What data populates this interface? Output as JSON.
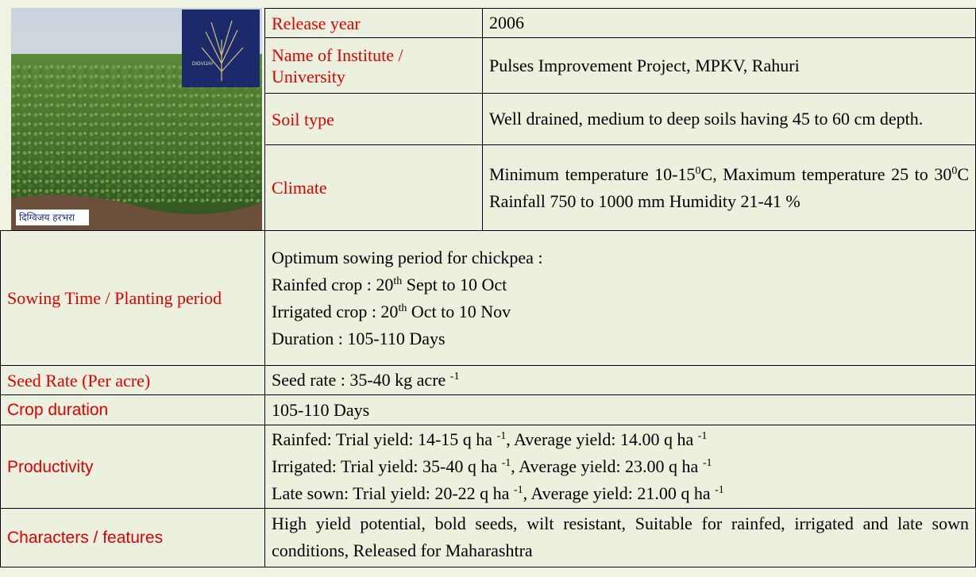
{
  "image": {
    "inset_label": "DIGVIJAY",
    "caption": "दिग्विजय हरभरा"
  },
  "top_rows": [
    {
      "label": "Release year",
      "value": [
        [
          "2006"
        ]
      ]
    },
    {
      "label": "Name of Institute / University",
      "value": [
        [
          "Pulses Improvement Project, MPKV, Rahuri"
        ]
      ]
    },
    {
      "label": "Soil type",
      "value": [
        [
          "Well drained, medium to deep soils having 45 to 60 cm depth."
        ]
      ],
      "wrap": true
    },
    {
      "label": "Climate",
      "value": [
        [
          "Minimum temperature  10-15",
          {
            "sup": "0"
          },
          "C, Maximum temperature  25 to 30",
          {
            "sup": "0"
          },
          "C Rainfall  750 to 1000 mm Humidity 21-41 %"
        ]
      ],
      "wrap": true
    }
  ],
  "bottom_rows": [
    {
      "label": "Sowing Time  / Planting  period",
      "value": [
        [
          "Optimum sowing period for chickpea :"
        ],
        [
          "Rainfed crop  : 20",
          {
            "sup": "th"
          },
          " Sept to 10 Oct"
        ],
        [
          "Irrigated crop : 20",
          {
            "sup": "th"
          },
          " Oct to 10 Nov"
        ],
        [
          "Duration : 105-110 Days"
        ]
      ]
    },
    {
      "label": "Seed Rate  (Per acre)",
      "value": [
        [
          "Seed rate  :  35-40 kg acre ",
          {
            "sup": "-1"
          }
        ]
      ]
    },
    {
      "label": "Crop duration",
      "value": [
        [
          "105-110 Days"
        ]
      ],
      "sans": true
    },
    {
      "label": "Productivity",
      "value": [
        [
          "Rainfed: Trial yield: 14-15 q ha ",
          {
            "sup": "-1"
          },
          ", Average yield: 14.00 q ha ",
          {
            "sup": "-1"
          }
        ],
        [
          "Irrigated: Trial yield: 35-40 q ha ",
          {
            "sup": "-1"
          },
          ", Average yield: 23.00 q ha ",
          {
            "sup": "-1"
          }
        ],
        [
          "Late sown: Trial yield: 20-22 q ha ",
          {
            "sup": "-1"
          },
          ",  Average yield: 21.00 q ha ",
          {
            "sup": "-1"
          }
        ]
      ],
      "sans": true
    },
    {
      "label": "Characters / features",
      "value": [
        [
          "High yield potential, bold seeds, wilt resistant, Suitable for rainfed, irrigated and late sown conditions, Released for Maharashtra"
        ]
      ],
      "wrap": true,
      "sans": true
    }
  ]
}
